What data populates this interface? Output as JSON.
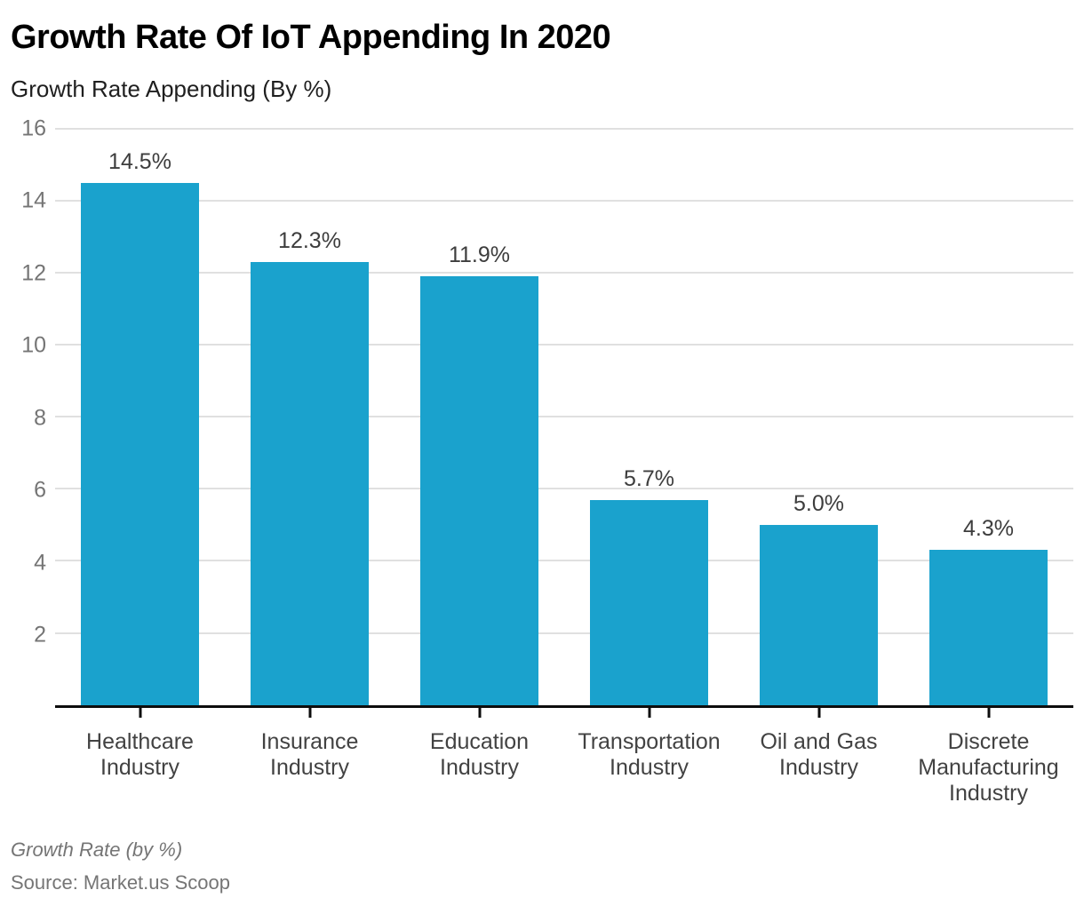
{
  "chart": {
    "title": "Growth Rate Of IoT Appending In 2020",
    "subtitle": "Growth Rate Appending (By %)"
  },
  "chart_data": {
    "type": "bar",
    "title": "Growth Rate Of IoT Appending In 2020",
    "subtitle": "Growth Rate Appending (By %)",
    "categories": [
      "Healthcare Industry",
      "Insurance Industry",
      "Education Industry",
      "Transportation Industry",
      "Oil and Gas Industry",
      "Discrete Manufacturing Industry"
    ],
    "values": [
      14.5,
      12.3,
      11.9,
      5.7,
      5.0,
      4.3
    ],
    "data_labels": [
      "14.5%",
      "12.3%",
      "11.9%",
      "5.7%",
      "5.0%",
      "4.3%"
    ],
    "xlabel": "",
    "ylabel": "Growth Rate Appending (By %)",
    "ylim": [
      0,
      16
    ],
    "yticks": [
      2,
      4,
      6,
      8,
      10,
      12,
      14,
      16
    ],
    "grid": true,
    "legend": false,
    "bar_color": "#1aa2cd",
    "gridline_color": "#e0e0e0",
    "axis_line_color": "#0d0d0d",
    "tick_label_color": "#757575",
    "data_label_color": "#3d3d3d"
  },
  "footer": {
    "note": "Growth Rate (by %)",
    "source": "Source: Market.us Scoop"
  }
}
